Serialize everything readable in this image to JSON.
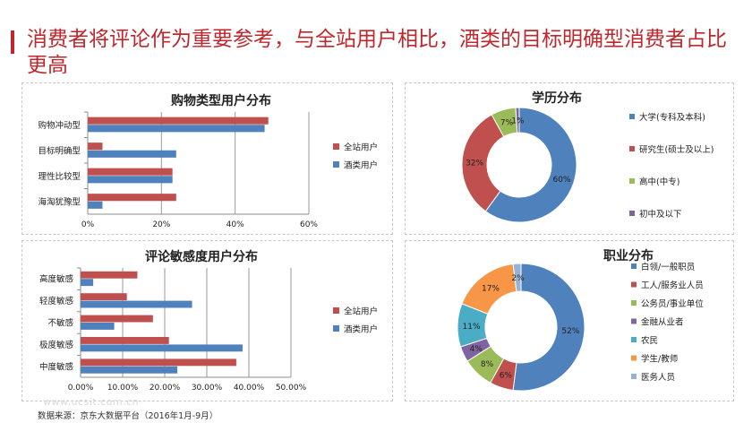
{
  "headline": "消费者将评论作为重要参考，与全站用户相比，酒类的目标明确型消费者占比更高",
  "source": "数据来源：京东大数据平台（2016年1月-9月）",
  "watermark": "www.ucsit.com.cn",
  "chart_data": [
    {
      "type": "bar",
      "orientation": "horizontal",
      "title": "购物类型用户分布",
      "categories": [
        "购物冲动型",
        "目标明确型",
        "理性比较型",
        "海淘犹豫型"
      ],
      "series": [
        {
          "name": "全站用户",
          "color": "#c0504d",
          "values": [
            49,
            4,
            23,
            24
          ]
        },
        {
          "name": "酒类用户",
          "color": "#4f81bd",
          "values": [
            48,
            24,
            23,
            4
          ]
        }
      ],
      "xlim": [
        0,
        60
      ],
      "xticks": [
        "0%",
        "20%",
        "40%",
        "60%"
      ],
      "grid": true,
      "legend": "right"
    },
    {
      "type": "bar",
      "orientation": "horizontal",
      "title": "评论敏感度用户分布",
      "categories": [
        "高度敏感",
        "轻度敏感",
        "不敏感",
        "极度敏感",
        "中度敏感"
      ],
      "series": [
        {
          "name": "全站用户",
          "color": "#c0504d",
          "values": [
            13.5,
            11,
            17.2,
            21,
            37
          ]
        },
        {
          "name": "酒类用户",
          "color": "#4f81bd",
          "values": [
            3,
            26.5,
            8,
            38.5,
            23
          ]
        }
      ],
      "xlim": [
        0,
        50
      ],
      "xticks": [
        "0.00%",
        "10.00%",
        "20.00%",
        "30.00%",
        "40.00%",
        "50.00%"
      ],
      "grid": true,
      "legend": "right"
    },
    {
      "type": "pie",
      "donut": true,
      "title": "学历分布",
      "slices": [
        {
          "label": "大学(专科及本科)",
          "value": 60,
          "text": "60%",
          "color": "#4f81bd"
        },
        {
          "label": "研究生(硕士及以上)",
          "value": 32,
          "text": "32%",
          "color": "#c0504d"
        },
        {
          "label": "高中(中专)",
          "value": 7,
          "text": "7%",
          "color": "#9bbb59"
        },
        {
          "label": "初中及以下",
          "value": 1,
          "text": "1%",
          "color": "#8064a2"
        }
      ],
      "legend": "right"
    },
    {
      "type": "pie",
      "donut": true,
      "title": "职业分布",
      "slices": [
        {
          "label": "白领/一般职员",
          "value": 52,
          "text": "52%",
          "color": "#4f81bd"
        },
        {
          "label": "工人/服务业人员",
          "value": 6,
          "text": "6%",
          "color": "#c0504d"
        },
        {
          "label": "公务员/事业单位",
          "value": 8,
          "text": "8%",
          "color": "#9bbb59"
        },
        {
          "label": "金融从业者",
          "value": 4,
          "text": "4%",
          "color": "#8064a2"
        },
        {
          "label": "农民",
          "value": 11,
          "text": "11%",
          "color": "#4bacc6"
        },
        {
          "label": "学生/教师",
          "value": 17,
          "text": "17%",
          "color": "#f79646"
        },
        {
          "label": "医务人员",
          "value": 2,
          "text": "2%",
          "color": "#95b3d7"
        }
      ],
      "legend": "right"
    }
  ]
}
